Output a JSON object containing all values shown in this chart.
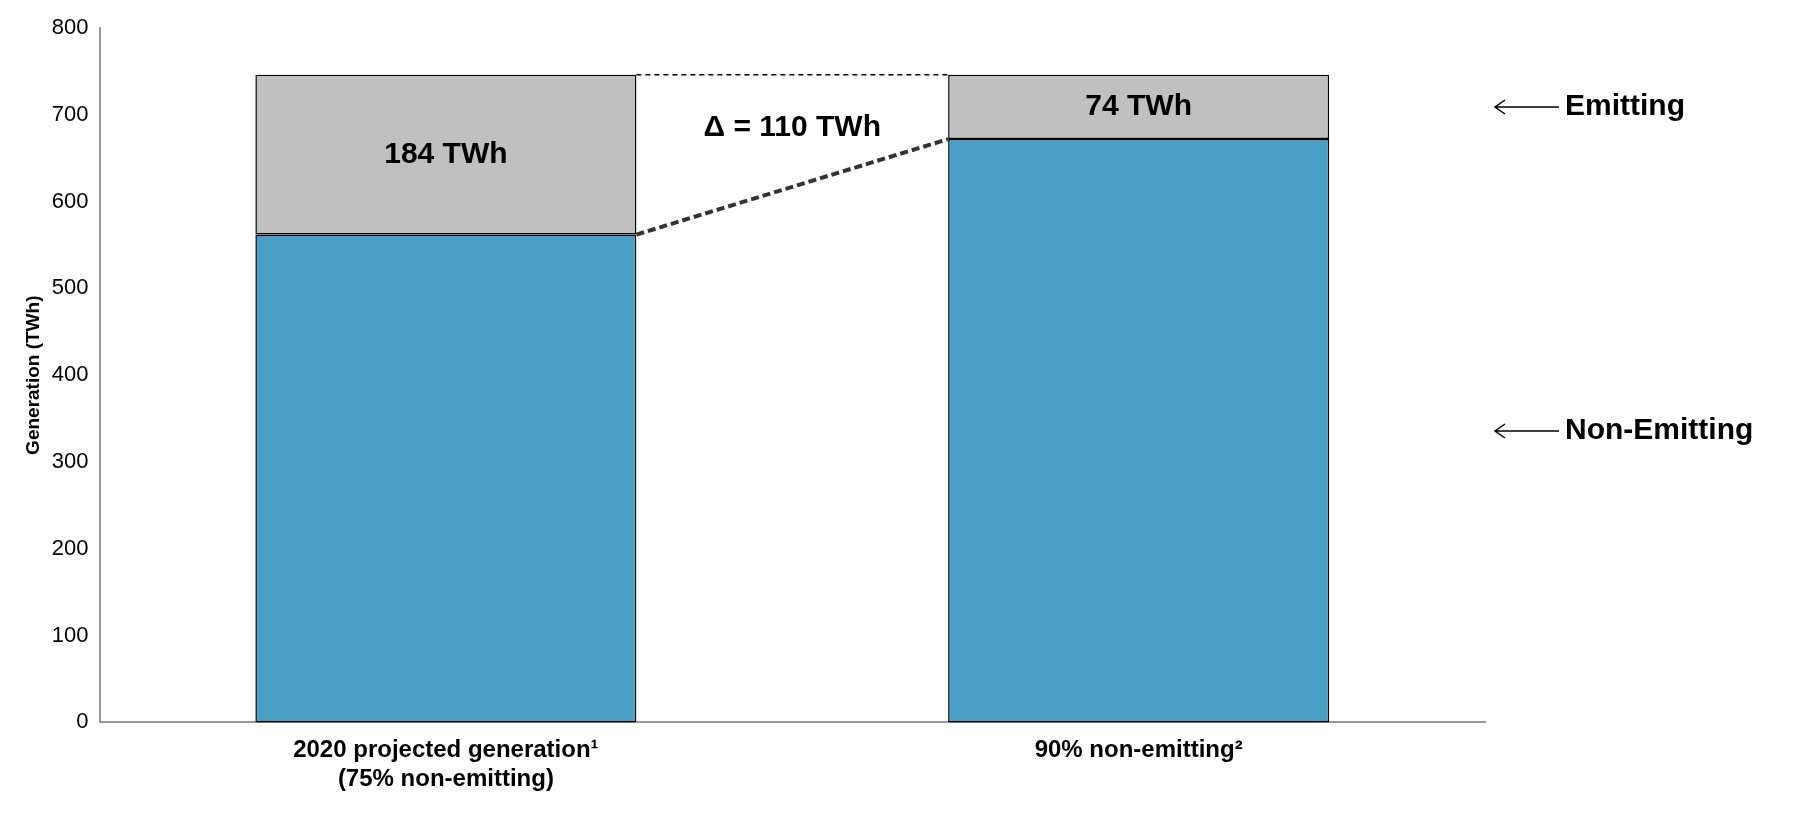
{
  "chart_data": {
    "type": "bar",
    "stacked": true,
    "ylabel": "Generation (TWh)",
    "categories": [
      "2020 projected generation¹\n(75% non-emitting)",
      "90% non-emitting²"
    ],
    "series": [
      {
        "name": "Non-Emitting",
        "color": "#4a9fc6",
        "values": [
          562,
          672
        ]
      },
      {
        "name": "Emitting",
        "color": "#c0c0c0",
        "values": [
          184,
          74
        ],
        "value_labels": [
          "184 TWh",
          "74 TWh"
        ]
      }
    ],
    "ylim": [
      0,
      800
    ],
    "yticks": [
      0,
      100,
      200,
      300,
      400,
      500,
      600,
      700,
      800
    ],
    "grid": false,
    "legend": false,
    "annotations": [
      "Δ = 110 TWh"
    ]
  }
}
